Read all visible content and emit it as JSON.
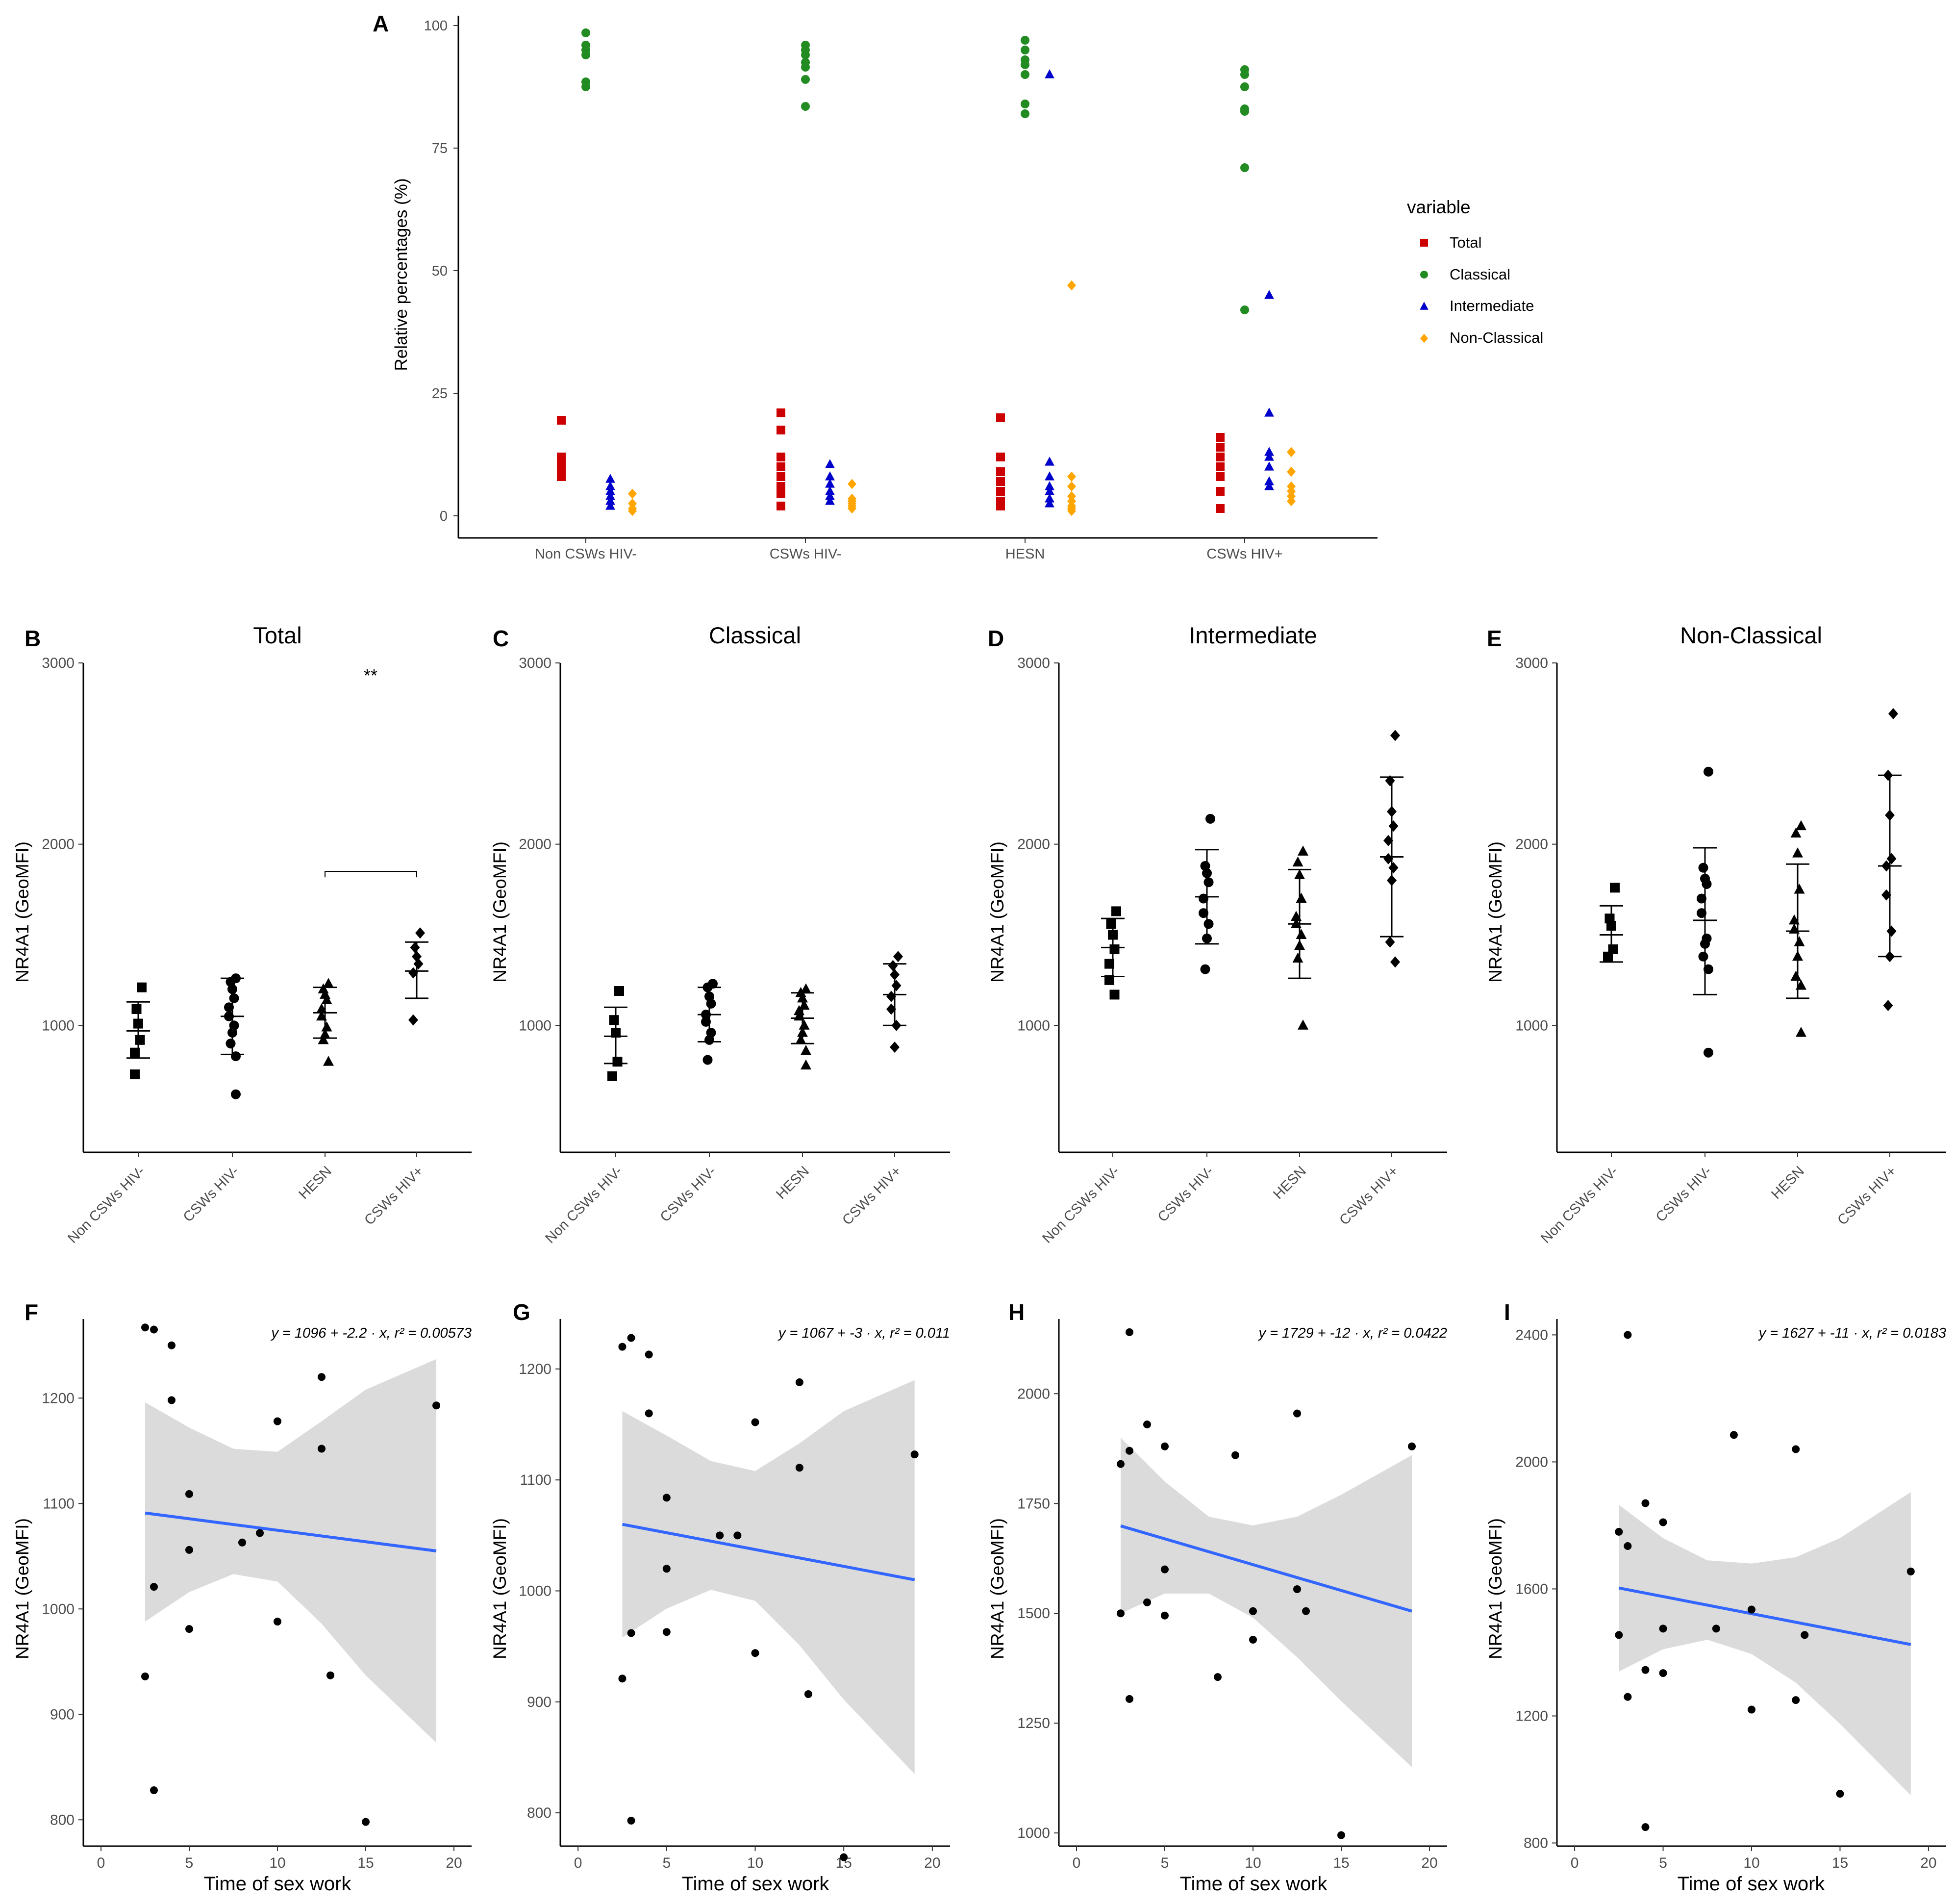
{
  "figure": {
    "panel_letters": [
      "A",
      "B",
      "C",
      "D",
      "E",
      "F",
      "G",
      "H",
      "I"
    ]
  },
  "colors": {
    "total": "#cc0000",
    "classical": "#228b22",
    "intermediate": "#0000cc",
    "nonclassical": "#ffa500",
    "fit": "#3366ff",
    "band": "#d9d9d9"
  },
  "chart_data": [
    {
      "id": "A",
      "type": "scatter",
      "title": "",
      "xlabel": "",
      "ylabel": "Relative percentages (%)",
      "categories": [
        "Non CSWs HIV-",
        "CSWs HIV-",
        "HESN",
        "CSWs HIV+"
      ],
      "ylim": [
        0,
        100
      ],
      "yticks": [
        0,
        25,
        50,
        75,
        100
      ],
      "legend": {
        "title": "variable",
        "position": "right",
        "entries": [
          {
            "label": "Total",
            "shape": "square",
            "color": "#cc0000"
          },
          {
            "label": "Classical",
            "shape": "circle",
            "color": "#228b22"
          },
          {
            "label": "Intermediate",
            "shape": "triangle",
            "color": "#0000cc"
          },
          {
            "label": "Non-Classical",
            "shape": "diamond",
            "color": "#ffa500"
          }
        ]
      },
      "series": [
        {
          "name": "Total",
          "shape": "square",
          "color": "#cc0000",
          "values": [
            [
              19.5,
              12,
              11,
              10,
              9,
              8
            ],
            [
              21,
              17.5,
              12,
              10,
              8,
              6,
              4.5,
              2
            ],
            [
              20,
              12,
              9,
              7,
              5,
              3,
              2
            ],
            [
              16,
              14,
              12,
              10,
              8,
              5,
              1.5
            ]
          ]
        },
        {
          "name": "Classical",
          "shape": "circle",
          "color": "#228b22",
          "values": [
            [
              98.5,
              96,
              95,
              94,
              88.5,
              87.5
            ],
            [
              96,
              95,
              94,
              92.5,
              91.5,
              89,
              83.5
            ],
            [
              97,
              95,
              93,
              92,
              90,
              84,
              82
            ],
            [
              91,
              90,
              87.5,
              83,
              82.5,
              71,
              42
            ]
          ]
        },
        {
          "name": "Intermediate",
          "shape": "triangle",
          "color": "#0000cc",
          "values": [
            [
              7.5,
              6,
              5,
              4,
              3,
              2
            ],
            [
              10.5,
              8,
              6.5,
              5,
              4,
              3
            ],
            [
              90,
              11,
              8,
              6,
              5,
              3.5,
              2.5
            ],
            [
              45,
              21,
              13,
              12,
              10,
              7,
              6
            ]
          ]
        },
        {
          "name": "Non-Classical",
          "shape": "diamond",
          "color": "#ffa500",
          "values": [
            [
              4.5,
              2.5,
              1.5,
              1
            ],
            [
              6.5,
              3.5,
              3,
              2.5,
              2,
              1.5
            ],
            [
              47,
              8,
              6,
              4,
              3,
              2,
              1.5,
              1
            ],
            [
              13,
              9,
              6,
              5,
              4,
              3
            ]
          ]
        }
      ]
    },
    {
      "id": "B",
      "type": "dot-errorbar",
      "title": "Total",
      "ylabel": "NR4A1 (GeoMFI)",
      "categories": [
        "Non CSWs HIV-",
        "CSWs HIV-",
        "HESN",
        "CSWs HIV+"
      ],
      "shapes": [
        "square",
        "circle",
        "triangle",
        "diamond"
      ],
      "ylim": [
        300,
        3000
      ],
      "yticks": [
        1000,
        2000,
        3000
      ],
      "groups": [
        {
          "points": [
            1210,
            1090,
            1010,
            920,
            850,
            730
          ],
          "mean": 970,
          "lower": 820,
          "upper": 1130
        },
        {
          "points": [
            1260,
            1240,
            1200,
            1150,
            1100,
            1050,
            1000,
            960,
            900,
            830,
            620
          ],
          "mean": 1050,
          "lower": 840,
          "upper": 1260
        },
        {
          "points": [
            1230,
            1200,
            1170,
            1140,
            1090,
            1050,
            990,
            950,
            920,
            800
          ],
          "mean": 1070,
          "lower": 930,
          "upper": 1210
        },
        {
          "points": [
            1510,
            1430,
            1380,
            1340,
            1290,
            1030
          ],
          "mean": 1300,
          "lower": 1150,
          "upper": 1460
        }
      ],
      "annotation": {
        "text": "**",
        "from": 2,
        "to": 3,
        "y": 1850
      }
    },
    {
      "id": "C",
      "type": "dot-errorbar",
      "title": "Classical",
      "ylabel": "NR4A1 (GeoMFI)",
      "categories": [
        "Non CSWs HIV-",
        "CSWs HIV-",
        "HESN",
        "CSWs HIV+"
      ],
      "shapes": [
        "square",
        "circle",
        "triangle",
        "diamond"
      ],
      "ylim": [
        300,
        3000
      ],
      "yticks": [
        1000,
        2000,
        3000
      ],
      "groups": [
        {
          "points": [
            1190,
            1030,
            960,
            800,
            720
          ],
          "mean": 940,
          "lower": 790,
          "upper": 1100
        },
        {
          "points": [
            1230,
            1210,
            1160,
            1120,
            1060,
            1020,
            960,
            920,
            810
          ],
          "mean": 1060,
          "lower": 910,
          "upper": 1210
        },
        {
          "points": [
            1200,
            1180,
            1150,
            1110,
            1080,
            1050,
            1000,
            960,
            920,
            860,
            780
          ],
          "mean": 1040,
          "lower": 900,
          "upper": 1180
        },
        {
          "points": [
            1380,
            1330,
            1280,
            1220,
            1160,
            1090,
            1000,
            880
          ],
          "mean": 1170,
          "lower": 1000,
          "upper": 1340
        }
      ]
    },
    {
      "id": "D",
      "type": "dot-errorbar",
      "title": "Intermediate",
      "ylabel": "NR4A1 (GeoMFI)",
      "categories": [
        "Non CSWs HIV-",
        "CSWs HIV-",
        "HESN",
        "CSWs HIV+"
      ],
      "shapes": [
        "square",
        "circle",
        "triangle",
        "diamond"
      ],
      "ylim": [
        300,
        3000
      ],
      "yticks": [
        1000,
        2000,
        3000
      ],
      "groups": [
        {
          "points": [
            1630,
            1560,
            1500,
            1420,
            1340,
            1250,
            1170
          ],
          "mean": 1430,
          "lower": 1270,
          "upper": 1590
        },
        {
          "points": [
            2140,
            1880,
            1840,
            1790,
            1700,
            1620,
            1560,
            1480,
            1310
          ],
          "mean": 1710,
          "lower": 1450,
          "upper": 1970
        },
        {
          "points": [
            1960,
            1900,
            1830,
            1700,
            1600,
            1560,
            1500,
            1440,
            1370,
            1000
          ],
          "mean": 1560,
          "lower": 1260,
          "upper": 1860
        },
        {
          "points": [
            2600,
            2350,
            2180,
            2100,
            2020,
            1920,
            1870,
            1800,
            1460,
            1350
          ],
          "mean": 1930,
          "lower": 1490,
          "upper": 2370
        }
      ]
    },
    {
      "id": "E",
      "type": "dot-errorbar",
      "title": "Non-Classical",
      "ylabel": "NR4A1 (GeoMFI)",
      "categories": [
        "Non CSWs HIV-",
        "CSWs HIV-",
        "HESN",
        "CSWs HIV+"
      ],
      "shapes": [
        "square",
        "circle",
        "triangle",
        "diamond"
      ],
      "ylim": [
        300,
        3000
      ],
      "yticks": [
        1000,
        2000,
        3000
      ],
      "groups": [
        {
          "points": [
            1760,
            1590,
            1550,
            1420,
            1380
          ],
          "mean": 1500,
          "lower": 1350,
          "upper": 1660
        },
        {
          "points": [
            2400,
            1870,
            1810,
            1780,
            1700,
            1620,
            1480,
            1450,
            1380,
            1310,
            850
          ],
          "mean": 1580,
          "lower": 1170,
          "upper": 1980
        },
        {
          "points": [
            2100,
            2060,
            1950,
            1750,
            1580,
            1530,
            1460,
            1380,
            1270,
            1220,
            960
          ],
          "mean": 1520,
          "lower": 1150,
          "upper": 1890
        },
        {
          "points": [
            2720,
            2380,
            2160,
            1920,
            1880,
            1720,
            1520,
            1380,
            1110
          ],
          "mean": 1880,
          "lower": 1380,
          "upper": 2380
        }
      ]
    },
    {
      "id": "F",
      "type": "scatter-regression",
      "xlabel": "Time of sex work",
      "ylabel": "NR4A1 (GeoMFI)",
      "equation": "y = 1096 + -2.2 · x,  r² = 0.00573",
      "xlim": [
        -1,
        21
      ],
      "ylim": [
        775,
        1275
      ],
      "xticks": [
        0,
        5,
        10,
        15,
        20
      ],
      "yticks": [
        800,
        900,
        1000,
        1100,
        1200
      ],
      "points": [
        [
          2.5,
          1267
        ],
        [
          3,
          1265
        ],
        [
          4,
          1250
        ],
        [
          4,
          1198
        ],
        [
          12.5,
          1220
        ],
        [
          10,
          1178
        ],
        [
          12.5,
          1152
        ],
        [
          19,
          1193
        ],
        [
          5,
          1109
        ],
        [
          8,
          1063
        ],
        [
          9,
          1072
        ],
        [
          5,
          1056
        ],
        [
          3,
          1021
        ],
        [
          5,
          981
        ],
        [
          10,
          988
        ],
        [
          2.5,
          936
        ],
        [
          13,
          937
        ],
        [
          3,
          828
        ],
        [
          15,
          798
        ]
      ],
      "fit": {
        "x0": 2.5,
        "y0": 1091,
        "x1": 19,
        "y1": 1055
      },
      "band": [
        [
          2.5,
          988,
          1196
        ],
        [
          5,
          1016,
          1172
        ],
        [
          7.5,
          1033,
          1152
        ],
        [
          10,
          1026,
          1149
        ],
        [
          12.5,
          986,
          1178
        ],
        [
          15,
          937,
          1208
        ],
        [
          19,
          873,
          1237
        ]
      ]
    },
    {
      "id": "G",
      "type": "scatter-regression",
      "xlabel": "Time of sex work",
      "ylabel": "NR4A1 (GeoMFI)",
      "equation": "y = 1067 + -3 · x,  r² = 0.011",
      "xlim": [
        -1,
        21
      ],
      "ylim": [
        770,
        1245
      ],
      "xticks": [
        0,
        5,
        10,
        15,
        20
      ],
      "yticks": [
        800,
        900,
        1000,
        1100,
        1200
      ],
      "points": [
        [
          2.5,
          1220
        ],
        [
          3,
          1228
        ],
        [
          4,
          1213
        ],
        [
          4,
          1160
        ],
        [
          12.5,
          1188
        ],
        [
          10,
          1152
        ],
        [
          12.5,
          1111
        ],
        [
          19,
          1123
        ],
        [
          5,
          1084
        ],
        [
          8,
          1050
        ],
        [
          9,
          1050
        ],
        [
          5,
          1020
        ],
        [
          3,
          962
        ],
        [
          5,
          963
        ],
        [
          10,
          944
        ],
        [
          2.5,
          921
        ],
        [
          13,
          907
        ],
        [
          3,
          793
        ],
        [
          15,
          760
        ]
      ],
      "fit": {
        "x0": 2.5,
        "y0": 1060,
        "x1": 19,
        "y1": 1010
      },
      "band": [
        [
          2.5,
          958,
          1162
        ],
        [
          5,
          984,
          1140
        ],
        [
          7.5,
          1001,
          1117
        ],
        [
          10,
          991,
          1108
        ],
        [
          12.5,
          951,
          1133
        ],
        [
          15,
          902,
          1162
        ],
        [
          19,
          835,
          1190
        ]
      ]
    },
    {
      "id": "H",
      "type": "scatter-regression",
      "xlabel": "Time of sex work",
      "ylabel": "NR4A1 (GeoMFI)",
      "equation": "y = 1729 + -12 · x,  r² = 0.0422",
      "xlim": [
        -1,
        21
      ],
      "ylim": [
        970,
        2170
      ],
      "xticks": [
        0,
        5,
        10,
        15,
        20
      ],
      "yticks": [
        1000,
        1250,
        1500,
        1750,
        2000
      ],
      "points": [
        [
          3,
          2140
        ],
        [
          4,
          1930
        ],
        [
          12.5,
          1955
        ],
        [
          5,
          1880
        ],
        [
          9,
          1860
        ],
        [
          3,
          1870
        ],
        [
          2.5,
          1840
        ],
        [
          19,
          1880
        ],
        [
          5,
          1600
        ],
        [
          4,
          1525
        ],
        [
          2.5,
          1500
        ],
        [
          5,
          1495
        ],
        [
          10,
          1505
        ],
        [
          12.5,
          1555
        ],
        [
          13,
          1505
        ],
        [
          10,
          1440
        ],
        [
          8,
          1355
        ],
        [
          3,
          1305
        ],
        [
          15,
          995
        ]
      ],
      "fit": {
        "x0": 2.5,
        "y0": 1699,
        "x1": 19,
        "y1": 1505
      },
      "band": [
        [
          2.5,
          1500,
          1900
        ],
        [
          5,
          1545,
          1800
        ],
        [
          7.5,
          1545,
          1720
        ],
        [
          10,
          1490,
          1700
        ],
        [
          12.5,
          1400,
          1720
        ],
        [
          15,
          1300,
          1770
        ],
        [
          19,
          1150,
          1860
        ]
      ]
    },
    {
      "id": "I",
      "type": "scatter-regression",
      "xlabel": "Time of sex work",
      "ylabel": "NR4A1 (GeoMFI)",
      "equation": "y = 1627 + -11 · x,  r² = 0.0183",
      "xlim": [
        -1,
        21
      ],
      "ylim": [
        790,
        2450
      ],
      "xticks": [
        0,
        5,
        10,
        15,
        20
      ],
      "yticks": [
        800,
        1200,
        1600,
        2000,
        2400
      ],
      "points": [
        [
          3,
          2400
        ],
        [
          9,
          2085
        ],
        [
          12.5,
          2040
        ],
        [
          4,
          1870
        ],
        [
          5,
          1810
        ],
        [
          2.5,
          1780
        ],
        [
          3,
          1735
        ],
        [
          19,
          1655
        ],
        [
          10,
          1535
        ],
        [
          8,
          1475
        ],
        [
          5,
          1475
        ],
        [
          13,
          1455
        ],
        [
          2.5,
          1455
        ],
        [
          4,
          1345
        ],
        [
          5,
          1335
        ],
        [
          3,
          1260
        ],
        [
          12.5,
          1250
        ],
        [
          10,
          1220
        ],
        [
          15,
          955
        ],
        [
          4,
          850
        ]
      ],
      "fit": {
        "x0": 2.5,
        "y0": 1603,
        "x1": 19,
        "y1": 1425
      },
      "band": [
        [
          2.5,
          1340,
          1865
        ],
        [
          5,
          1410,
          1760
        ],
        [
          7.5,
          1440,
          1690
        ],
        [
          10,
          1395,
          1680
        ],
        [
          12.5,
          1305,
          1700
        ],
        [
          15,
          1175,
          1760
        ],
        [
          19,
          950,
          1905
        ]
      ]
    }
  ]
}
